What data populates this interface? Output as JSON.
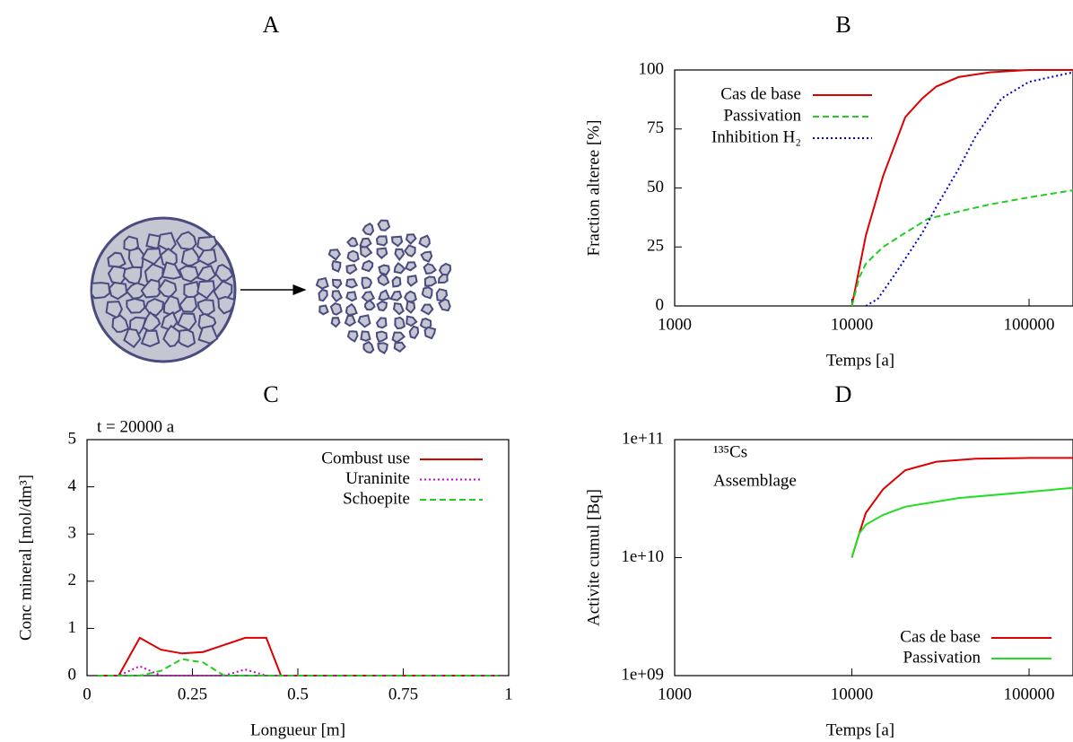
{
  "illustration": {
    "title": "A"
  },
  "chart_data": [
    {
      "type": "line",
      "title": "B",
      "xlabel": "Temps [a]",
      "ylabel": "Fraction alteree [%]",
      "xscale": "log",
      "xlim": [
        1000,
        177000
      ],
      "xticks": [
        1000,
        10000,
        100000
      ],
      "ylim": [
        0,
        100
      ],
      "yticks": [
        0,
        25,
        50,
        75,
        100
      ],
      "legend": "upper left",
      "series": [
        {
          "name": "Cas de base",
          "color": "#dd0000",
          "style": "solid",
          "x": [
            10000,
            12000,
            15000,
            20000,
            25000,
            30000,
            40000,
            60000,
            100000,
            177000
          ],
          "values": [
            0,
            30,
            55,
            80,
            88,
            93,
            97,
            99,
            100,
            100
          ]
        },
        {
          "name": "Passivation",
          "color": "#22cc22",
          "style": "dashed",
          "x": [
            10000,
            11000,
            12000,
            15000,
            20000,
            27000,
            40000,
            60000,
            100000,
            177000
          ],
          "values": [
            0,
            12,
            18,
            25,
            31,
            37,
            40,
            43,
            46,
            49
          ]
        },
        {
          "name": "Inhibition H₂",
          "color": "#0000cc",
          "style": "dotted",
          "x": [
            12000,
            14000,
            17000,
            20000,
            25000,
            30000,
            40000,
            50000,
            70000,
            100000,
            177000
          ],
          "values": [
            0,
            3,
            12,
            20,
            31,
            42,
            58,
            72,
            88,
            95,
            99
          ]
        }
      ]
    },
    {
      "type": "line",
      "title": "C",
      "xlabel": "Longueur [m]",
      "ylabel": "Conc mineral [mol/dm³]",
      "annotation": "t = 20000 a",
      "xlim": [
        0,
        1
      ],
      "xticks": [
        0,
        0.25,
        0.5,
        0.75,
        1
      ],
      "ylim": [
        0,
        5
      ],
      "yticks": [
        0,
        1,
        2,
        3,
        4,
        5
      ],
      "legend": "upper right",
      "x": [
        0.025,
        0.075,
        0.125,
        0.175,
        0.225,
        0.275,
        0.325,
        0.375,
        0.425,
        0.46,
        0.525,
        0.575,
        0.625,
        0.675,
        0.725,
        0.775,
        0.825,
        0.875,
        0.925,
        0.975
      ],
      "series": [
        {
          "name": "Combust use",
          "color": "#dd0000",
          "style": "solid",
          "values": [
            0,
            0,
            0.8,
            0.55,
            0.47,
            0.5,
            0.65,
            0.8,
            0.8,
            0,
            0,
            0,
            0,
            0,
            0,
            0,
            0,
            0,
            0,
            0
          ]
        },
        {
          "name": "Uraninite",
          "color": "#cc00cc",
          "style": "dotted",
          "values": [
            0,
            0,
            0.2,
            0,
            0,
            0,
            0,
            0.13,
            0,
            0,
            0,
            0,
            0,
            0,
            0,
            0,
            0,
            0,
            0,
            0
          ]
        },
        {
          "name": "Schoepite",
          "color": "#22cc22",
          "style": "dashed",
          "values": [
            0,
            0,
            0,
            0.1,
            0.35,
            0.28,
            0,
            0,
            0,
            0,
            0,
            0,
            0,
            0,
            0,
            0,
            0,
            0,
            0,
            0
          ]
        }
      ]
    },
    {
      "type": "line",
      "title": "D",
      "xlabel": "Temps [a]",
      "ylabel": "Activite cumul [Bq]",
      "annotation": [
        "¹³⁵Cs",
        "Assemblage"
      ],
      "xscale": "log",
      "xlim": [
        1000,
        177000
      ],
      "xticks": [
        1000,
        10000,
        100000
      ],
      "yscale": "log",
      "ylim": [
        1000000000,
        100000000000
      ],
      "yticks": [
        {
          "value": 1000000000,
          "label": "1e+09"
        },
        {
          "value": 10000000000,
          "label": "1e+10"
        },
        {
          "value": 100000000000,
          "label": "1e+11"
        }
      ],
      "legend": "lower right",
      "series": [
        {
          "name": "Cas de base",
          "color": "#dd0000",
          "style": "solid",
          "x": [
            10000,
            11000,
            12000,
            15000,
            20000,
            30000,
            50000,
            100000,
            177000
          ],
          "values": [
            10000000000,
            16000000000,
            24000000000,
            38000000000,
            55000000000,
            65000000000,
            69000000000,
            70000000000,
            70000000000
          ]
        },
        {
          "name": "Passivation",
          "color": "#22dd22",
          "style": "solid",
          "x": [
            10000,
            11000,
            12000,
            15000,
            20000,
            40000,
            100000,
            177000
          ],
          "values": [
            10000000000,
            16000000000,
            19000000000,
            23000000000,
            27000000000,
            32000000000,
            36000000000,
            39000000000
          ]
        }
      ]
    }
  ]
}
